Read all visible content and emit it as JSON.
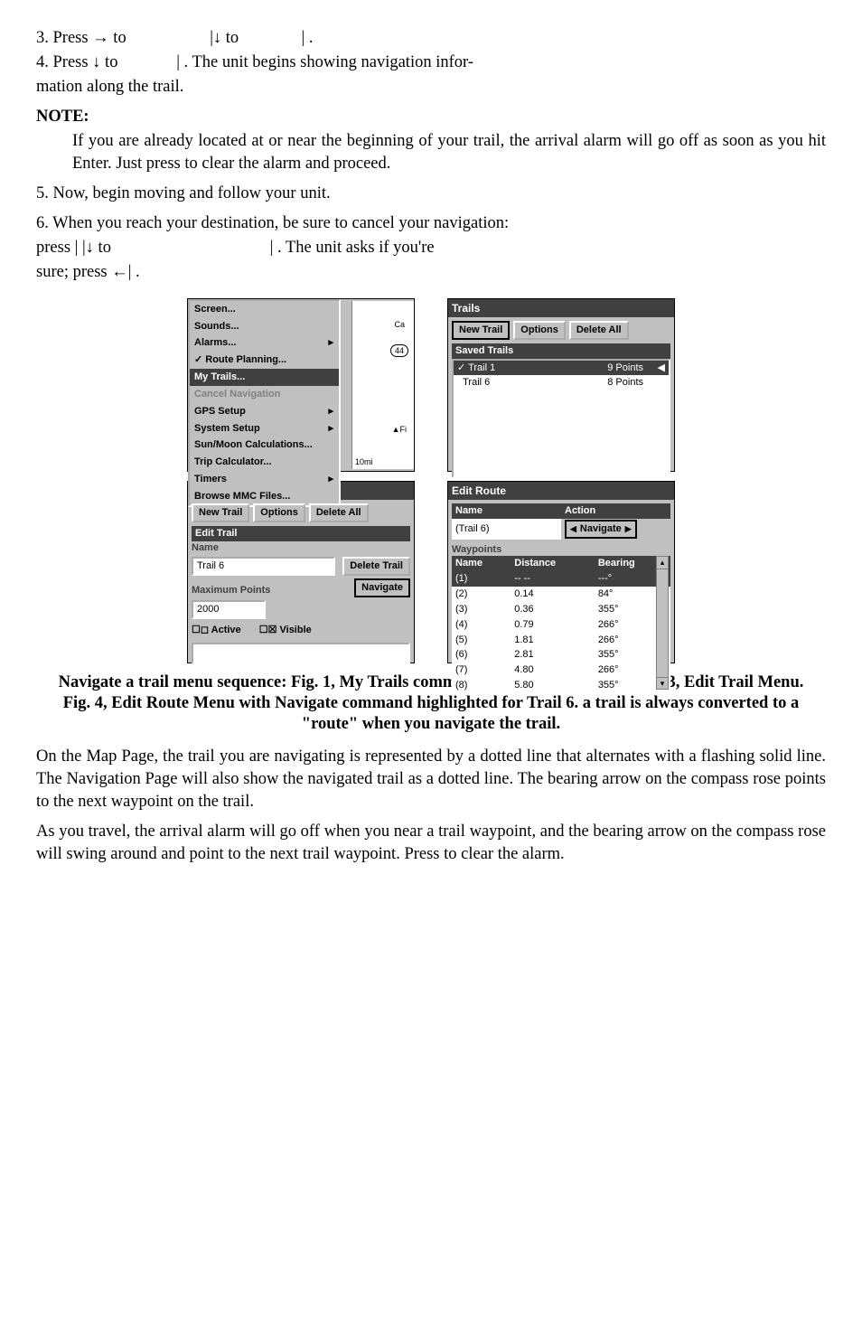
{
  "steps": {
    "s3": {
      "pre": "3. Press → to ",
      "mid": "|↓ to ",
      "end": "|    ."
    },
    "s4": {
      "pre": "4. Press ↓ to ",
      "mid": "|    . The unit begins showing navigation infor-",
      "line2": "mation along the trail."
    },
    "note_head": "NOTE:",
    "note_body": "If you are already located at or near the beginning of your trail, the arrival alarm will go off as soon as you hit Enter. Just press        to clear the alarm and proceed.",
    "s5": "5. Now, begin moving and follow your unit.",
    "s6a": "6. When you reach your destination, be sure to cancel your navigation:",
    "s6b_pre": "press       |       |↓ to ",
    "s6b_mid": "|    . The unit asks if you're",
    "s6c": "sure; press ←|     ."
  },
  "fig1_menu": {
    "items": [
      {
        "t": "Screen...",
        "sel": false
      },
      {
        "t": "Sounds...",
        "sel": false
      },
      {
        "t": "Alarms...",
        "sel": false,
        "arrow": true
      },
      {
        "t": "Route Planning...",
        "sel": false,
        "check": true
      },
      {
        "t": "My Trails...",
        "sel": true
      },
      {
        "t": "Cancel Navigation",
        "sel": false,
        "disabled": true
      },
      {
        "t": "GPS Setup",
        "sel": false,
        "arrow": true
      },
      {
        "t": "System Setup",
        "sel": false,
        "arrow": true
      },
      {
        "t": "Sun/Moon Calculations...",
        "sel": false
      },
      {
        "t": "Trip Calculator...",
        "sel": false
      },
      {
        "t": "Timers",
        "sel": false,
        "arrow": true
      },
      {
        "t": "Browse MMC Files...",
        "sel": false
      }
    ],
    "minimap": {
      "scale": "10mi",
      "bubble": "44",
      "fi": "Fi",
      "other": "Ca"
    }
  },
  "fig2": {
    "title": "Trails",
    "buttons": [
      "New Trail",
      "Options",
      "Delete All"
    ],
    "btn_sel": 0,
    "subhead": "Saved Trails",
    "rows": [
      {
        "name": "Trail 1",
        "pts": "9 Points",
        "sel": true,
        "check": true,
        "icon": true
      },
      {
        "name": "Trail 6",
        "pts": "8 Points",
        "sel": false
      }
    ]
  },
  "fig3": {
    "title": "Trails",
    "buttons": [
      "New Trail",
      "Options",
      "Delete All"
    ],
    "sub_title": "Edit Trail",
    "name_label": "Name",
    "name_value": "Trail 6",
    "del_btn": "Delete Trail",
    "max_label": "Maximum Points",
    "nav_btn": "Navigate",
    "max_value": "2000",
    "active_label": "Active",
    "visible_label": "Visible"
  },
  "fig4": {
    "title": "Edit Route",
    "name_h": "Name",
    "action_h": "Action",
    "name_value": "(Trail 6)",
    "action_value": "Navigate",
    "wp_h": "Waypoints",
    "cols": [
      "Name",
      "Distance",
      "Bearing"
    ],
    "rows": [
      {
        "n": "(1)",
        "d": "-- --",
        "b": "---°",
        "sel": true
      },
      {
        "n": "(2)",
        "d": "0.14",
        "b": "84°"
      },
      {
        "n": "(3)",
        "d": "0.36",
        "b": "355°"
      },
      {
        "n": "(4)",
        "d": "0.79",
        "b": "266°"
      },
      {
        "n": "(5)",
        "d": "1.81",
        "b": "266°"
      },
      {
        "n": "(6)",
        "d": "2.81",
        "b": "355°"
      },
      {
        "n": "(7)",
        "d": "4.80",
        "b": "266°"
      },
      {
        "n": "(8)",
        "d": "5.80",
        "b": "355°"
      }
    ]
  },
  "caption": "Navigate a trail menu sequence: Fig. 1, My Trails command. Fig. 2, Trails Menu. Fig. 3, Edit Trail Menu. Fig. 4, Edit Route Menu with Navigate command highlighted for Trail 6. a trail is always converted to a \"route\" when you navigate the trail.",
  "closing": {
    "p1": "On the Map Page, the trail you are navigating is represented by a dotted line that alternates with a flashing solid line. The Navigation Page will also show the navigated trail as a dotted line. The bearing arrow on the compass rose points to the next waypoint on the trail.",
    "p2": "As you travel, the arrival alarm will go off when you near a trail waypoint, and the bearing arrow on the compass rose will swing around and point to the next trail waypoint. Press        to clear the alarm."
  }
}
